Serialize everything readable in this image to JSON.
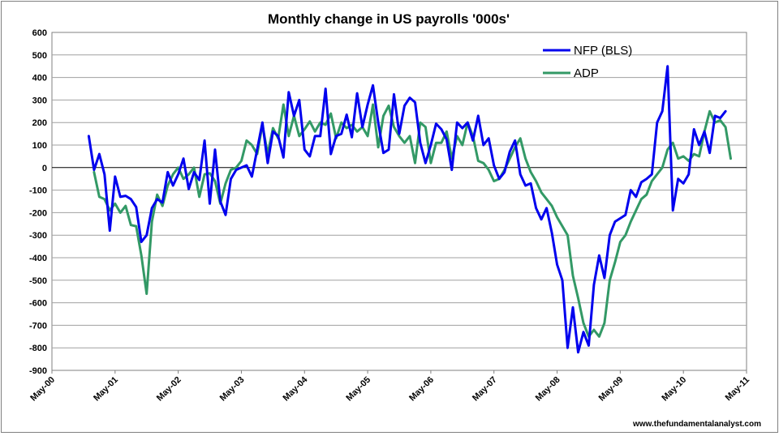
{
  "chart_data": {
    "type": "line",
    "title": "Monthly change in US payrolls '000s'",
    "xlabel": "",
    "ylabel": "",
    "ylim": [
      -900,
      600
    ],
    "y_ticks": [
      -900,
      -800,
      -700,
      -600,
      -500,
      -400,
      -300,
      -200,
      -100,
      0,
      100,
      200,
      300,
      400,
      500,
      600
    ],
    "x_tick_labels": [
      "May-00",
      "May-01",
      "May-02",
      "May-03",
      "May-04",
      "May-05",
      "May-06",
      "May-07",
      "May-08",
      "May-09",
      "May-10",
      "May-11"
    ],
    "grid": true,
    "legend_position": "top-right",
    "source_note": "www.thefundamentalanalyst.com",
    "series": [
      {
        "name": "NFP (BLS)",
        "color": "#0000ee",
        "start_month_index": 7,
        "values": [
          140,
          -10,
          60,
          -30,
          -280,
          -40,
          -130,
          -125,
          -140,
          -175,
          -330,
          -300,
          -180,
          -140,
          -155,
          -20,
          -80,
          -30,
          40,
          -95,
          -20,
          -55,
          120,
          -160,
          80,
          -150,
          -210,
          -50,
          -10,
          0,
          10,
          -40,
          80,
          200,
          20,
          160,
          140,
          45,
          335,
          230,
          300,
          80,
          50,
          140,
          140,
          350,
          60,
          140,
          150,
          235,
          135,
          330,
          180,
          280,
          365,
          200,
          65,
          80,
          325,
          150,
          275,
          310,
          290,
          110,
          20,
          100,
          195,
          170,
          125,
          -10,
          200,
          175,
          200,
          120,
          230,
          100,
          130,
          10,
          -50,
          -20,
          70,
          120,
          -30,
          -80,
          -70,
          -180,
          -230,
          -180,
          -290,
          -430,
          -500,
          -800,
          -620,
          -820,
          -730,
          -790,
          -520,
          -390,
          -490,
          -300,
          -240,
          -225,
          -210,
          -100,
          -130,
          -65,
          -50,
          -30,
          200,
          250,
          450,
          -190,
          -50,
          -70,
          -30,
          170,
          100,
          160,
          65,
          230,
          220,
          250
        ],
        "values_note": ""
      },
      {
        "name": "ADP",
        "color": "#339966",
        "start_month_index": 8,
        "values": [
          -20,
          -130,
          -140,
          -190,
          -160,
          -200,
          -170,
          -255,
          -260,
          -390,
          -560,
          -240,
          -120,
          -170,
          -80,
          -30,
          0,
          -50,
          -30,
          0,
          -130,
          -30,
          -25,
          -60,
          -160,
          -70,
          -10,
          0,
          30,
          120,
          100,
          60,
          190,
          60,
          175,
          130,
          280,
          140,
          230,
          140,
          170,
          205,
          160,
          200,
          190,
          240,
          130,
          200,
          175,
          190,
          160,
          180,
          140,
          280,
          90,
          230,
          275,
          180,
          140,
          110,
          140,
          20,
          200,
          180,
          20,
          110,
          110,
          160,
          40,
          140,
          100,
          200,
          140,
          30,
          20,
          -10,
          -60,
          -50,
          -10,
          40,
          90,
          130,
          40,
          -20,
          -60,
          -110,
          -140,
          -170,
          -220,
          -260,
          -300,
          -480,
          -580,
          -690,
          -750,
          -720,
          -750,
          -690,
          -500,
          -420,
          -330,
          -300,
          -240,
          -190,
          -140,
          -120,
          -60,
          -30,
          0,
          80,
          110,
          40,
          50,
          30,
          60,
          50,
          160,
          250,
          200,
          210,
          180,
          40
        ],
        "values_note": ""
      }
    ]
  }
}
